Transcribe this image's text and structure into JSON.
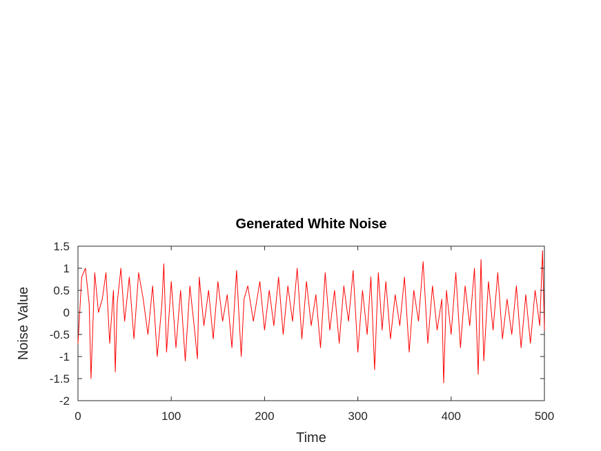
{
  "chart_data": {
    "type": "line",
    "title": "Generated White Noise",
    "xlabel": "Time",
    "ylabel": "Noise Value",
    "xlim": [
      0,
      500
    ],
    "ylim": [
      -2,
      1.5
    ],
    "x_ticks": [
      0,
      100,
      200,
      300,
      400,
      500
    ],
    "x_tick_labels": [
      "0",
      "100",
      "200",
      "300",
      "400",
      "500"
    ],
    "y_ticks": [
      -2,
      -1.5,
      -1,
      -0.5,
      0,
      0.5,
      1,
      1.5
    ],
    "y_tick_labels": [
      "-2",
      "-1.5",
      "-1",
      "-0.5",
      "0",
      "0.5",
      "1",
      "1.5"
    ],
    "grid": false,
    "series": [
      {
        "color": "#ff0000",
        "x": [
          0,
          4,
          8,
          12,
          14,
          18,
          22,
          26,
          30,
          34,
          38,
          40,
          42,
          46,
          50,
          55,
          60,
          65,
          70,
          75,
          80,
          85,
          90,
          92,
          95,
          100,
          105,
          110,
          115,
          120,
          125,
          128,
          130,
          135,
          140,
          145,
          150,
          155,
          160,
          165,
          170,
          175,
          178,
          182,
          188,
          195,
          200,
          205,
          210,
          215,
          220,
          225,
          230,
          235,
          240,
          245,
          250,
          255,
          260,
          265,
          270,
          275,
          280,
          285,
          290,
          295,
          300,
          305,
          310,
          314,
          318,
          322,
          326,
          330,
          335,
          340,
          345,
          350,
          355,
          360,
          365,
          370,
          375,
          380,
          385,
          390,
          392,
          395,
          400,
          405,
          410,
          415,
          420,
          425,
          429,
          432,
          435,
          440,
          445,
          450,
          455,
          460,
          465,
          470,
          475,
          480,
          485,
          490,
          495,
          498,
          500
        ],
        "y": [
          -0.7,
          0.8,
          1.0,
          0.2,
          -1.5,
          0.9,
          0.0,
          0.3,
          0.9,
          -0.7,
          0.5,
          -1.35,
          0.2,
          1.0,
          -0.2,
          0.8,
          -0.6,
          0.9,
          0.3,
          -0.5,
          0.6,
          -1.0,
          0.2,
          1.1,
          -0.9,
          0.7,
          -0.8,
          0.5,
          -1.1,
          0.6,
          -0.4,
          -1.05,
          0.8,
          -0.3,
          0.5,
          -0.6,
          0.7,
          -0.2,
          0.4,
          -0.8,
          0.95,
          -1.0,
          0.3,
          0.6,
          -0.2,
          0.7,
          -0.4,
          0.5,
          -0.3,
          0.8,
          -0.5,
          0.6,
          -0.2,
          1.0,
          -0.6,
          0.7,
          -0.3,
          0.4,
          -0.8,
          0.9,
          -0.4,
          0.5,
          -0.7,
          0.6,
          -0.2,
          0.95,
          -0.9,
          0.5,
          -0.5,
          0.8,
          -1.3,
          0.9,
          -0.4,
          0.7,
          -0.6,
          0.4,
          -0.3,
          0.8,
          -0.9,
          0.5,
          -0.2,
          1.15,
          -0.7,
          0.6,
          -0.4,
          0.3,
          -1.6,
          0.5,
          -0.5,
          0.9,
          -0.8,
          0.6,
          -0.3,
          1.0,
          -1.4,
          1.2,
          -1.1,
          0.7,
          -0.4,
          0.9,
          -0.6,
          0.3,
          -0.5,
          0.6,
          -0.8,
          0.4,
          -0.7,
          0.5,
          -0.3,
          1.4,
          -0.4
        ]
      }
    ]
  }
}
